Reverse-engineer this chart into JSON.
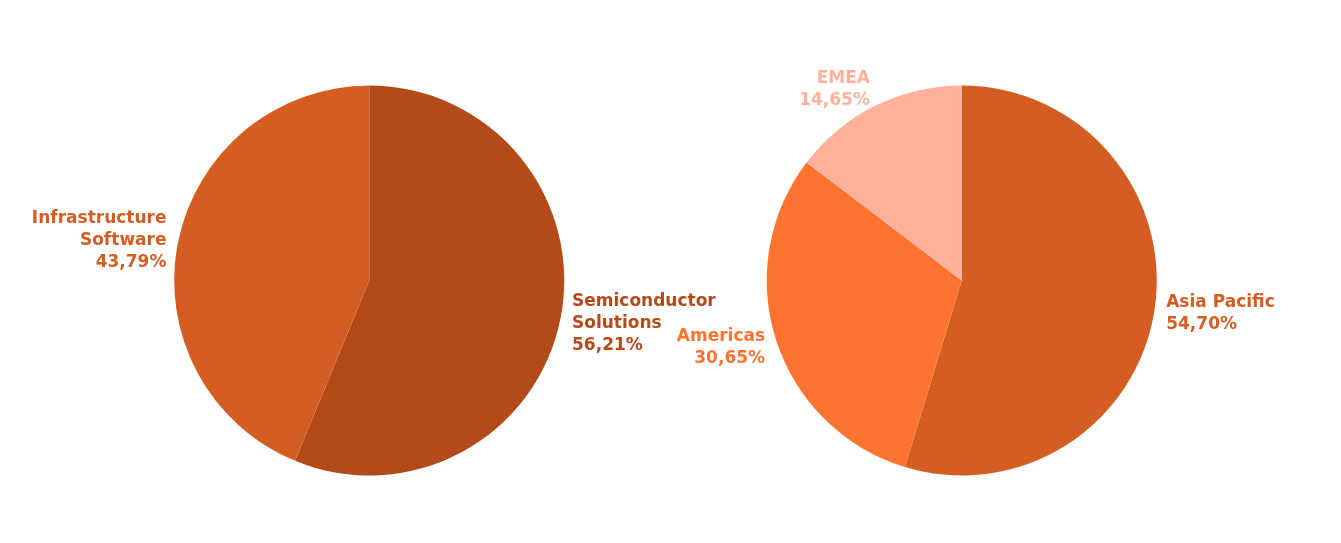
{
  "chart_data": [
    {
      "type": "pie",
      "categories": [
        "Semiconductor Solutions",
        "Infrastructure Software"
      ],
      "values": [
        56.21,
        43.79
      ],
      "colors": [
        "#b34a1a",
        "#d45d22"
      ],
      "value_labels": [
        "56,21%",
        "43,79%"
      ]
    },
    {
      "type": "pie",
      "categories": [
        "Asia Pacific",
        "Americas",
        "EMEA"
      ],
      "values": [
        54.7,
        30.65,
        14.65
      ],
      "colors": [
        "#d45d22",
        "#fd7430",
        "#ffb19b"
      ],
      "value_labels": [
        "54,70%",
        "30,65%",
        "14,65%"
      ]
    }
  ]
}
